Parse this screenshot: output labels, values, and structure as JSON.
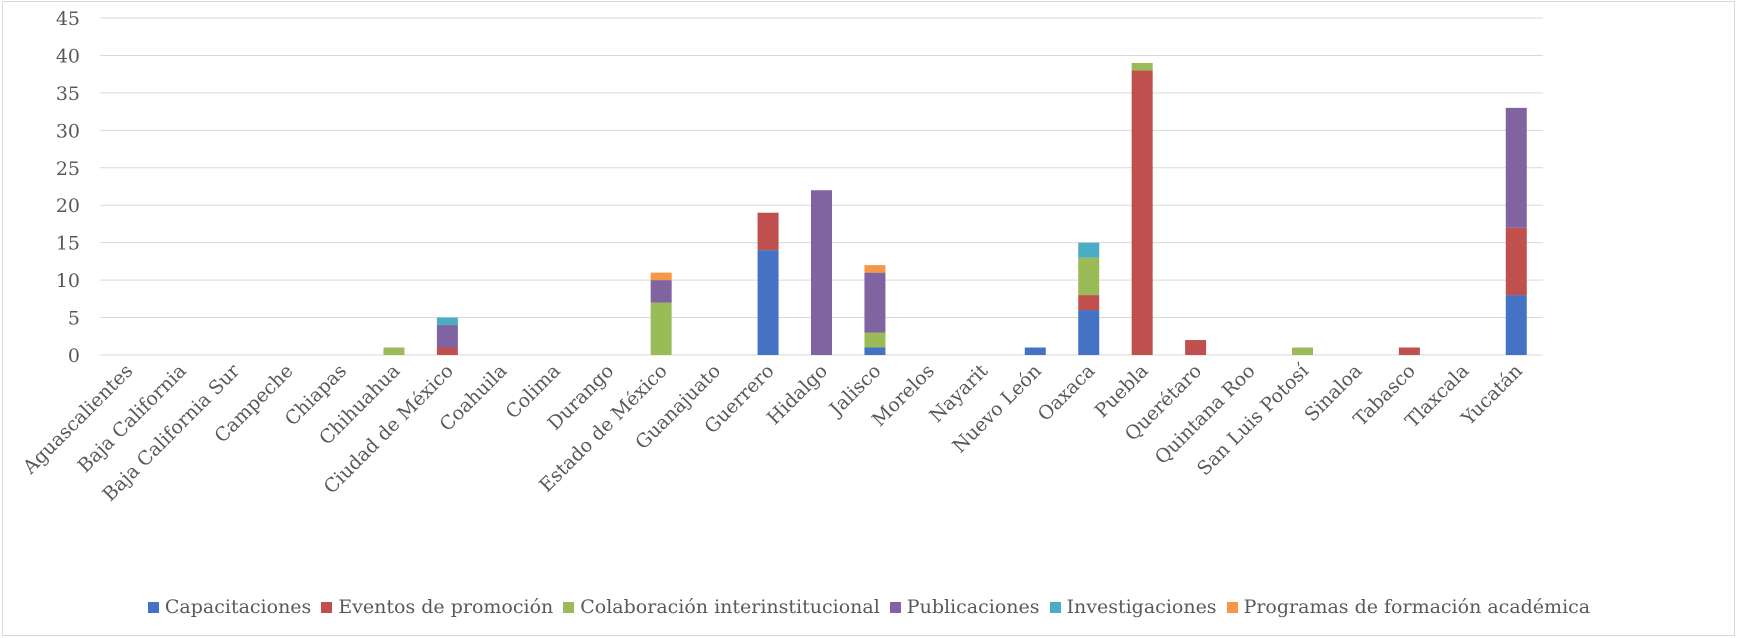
{
  "chart_data": {
    "type": "bar",
    "stacked": true,
    "categories": [
      "Aguascalientes",
      "Baja California",
      "Baja California Sur",
      "Campeche",
      "Chiapas",
      "Chihuahua",
      "Ciudad de México",
      "Coahuila",
      "Colima",
      "Durango",
      "Estado de México",
      "Guanajuato",
      "Guerrero",
      "Hidalgo",
      "Jalisco",
      "Morelos",
      "Nayarit",
      "Nuevo León",
      "Oaxaca",
      "Puebla",
      "Querétaro",
      "Quintana Roo",
      "San Luis Potosí",
      "Sinaloa",
      "Tabasco",
      "Tlaxcala",
      "Yucatán"
    ],
    "series": [
      {
        "name": "Capacitaciones",
        "color": "#4472c4",
        "values": [
          0,
          0,
          0,
          0,
          0,
          0,
          0,
          0,
          0,
          0,
          0,
          0,
          14,
          0,
          1,
          0,
          0,
          1,
          6,
          0,
          0,
          0,
          0,
          0,
          0,
          0,
          8
        ]
      },
      {
        "name": "Eventos de promoción",
        "color": "#c0504d",
        "values": [
          0,
          0,
          0,
          0,
          0,
          0,
          1,
          0,
          0,
          0,
          0,
          0,
          5,
          0,
          0,
          0,
          0,
          0,
          2,
          38,
          2,
          0,
          0,
          0,
          1,
          0,
          9
        ]
      },
      {
        "name": "Colaboración interinstitucional",
        "color": "#9bbb59",
        "values": [
          0,
          0,
          0,
          0,
          0,
          1,
          0,
          0,
          0,
          0,
          7,
          0,
          0,
          0,
          2,
          0,
          0,
          0,
          5,
          1,
          0,
          0,
          1,
          0,
          0,
          0,
          0
        ]
      },
      {
        "name": "Publicaciones",
        "color": "#8064a2",
        "values": [
          0,
          0,
          0,
          0,
          0,
          0,
          3,
          0,
          0,
          0,
          3,
          0,
          0,
          22,
          8,
          0,
          0,
          0,
          0,
          0,
          0,
          0,
          0,
          0,
          0,
          0,
          16
        ]
      },
      {
        "name": "Investigaciones",
        "color": "#4bacc6",
        "values": [
          0,
          0,
          0,
          0,
          0,
          0,
          1,
          0,
          0,
          0,
          0,
          0,
          0,
          0,
          0,
          0,
          0,
          0,
          2,
          0,
          0,
          0,
          0,
          0,
          0,
          0,
          0
        ]
      },
      {
        "name": "Programas de formación académica",
        "color": "#f79646",
        "values": [
          0,
          0,
          0,
          0,
          0,
          0,
          0,
          0,
          0,
          0,
          1,
          0,
          0,
          0,
          1,
          0,
          0,
          0,
          0,
          0,
          0,
          0,
          0,
          0,
          0,
          0,
          0
        ]
      }
    ],
    "y_ticks": [
      "0",
      "5",
      "10",
      "15",
      "20",
      "25",
      "30",
      "35",
      "40",
      "45"
    ],
    "ylim": [
      0,
      45
    ],
    "grid": true,
    "legend_position": "bottom"
  }
}
